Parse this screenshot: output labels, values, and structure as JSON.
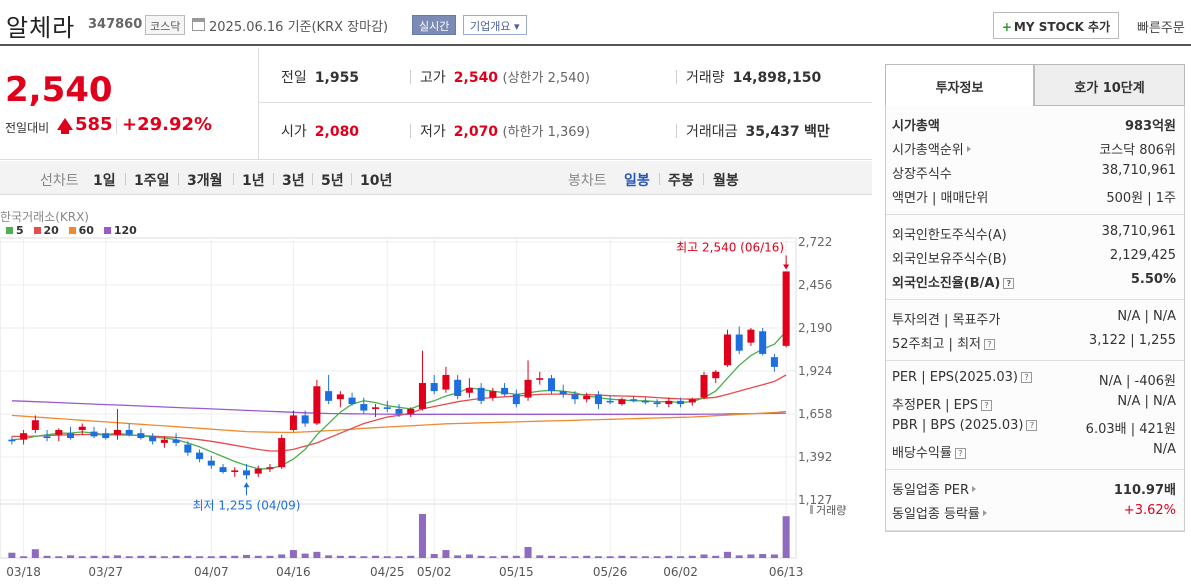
{
  "header": {
    "stock_name": "알체라",
    "stock_code": "347860",
    "market": "코스닥",
    "base_date": "2025.06.16  기준(KRX 장마감)",
    "realtime_label": "실시간",
    "overview_label": "기업개요 ▾",
    "mystock_label": "MY STOCK 추가",
    "mystock_plus": "+",
    "quick_order_label": "빠른주문"
  },
  "summary": {
    "current_price": "2,540",
    "change_label": "전일대비",
    "change_value": "585",
    "change_rate": "+29.92%",
    "prev_close_label": "전일",
    "prev_close": "1,955",
    "high_label": "고가",
    "high": "2,540",
    "upper_limit": "(상한가 2,540)",
    "volume_label": "거래량",
    "volume": "14,898,150",
    "open_label": "시가",
    "open": "2,080",
    "low_label": "저가",
    "low": "2,070",
    "lower_limit": "(하한가 1,369)",
    "turnover_label": "거래대금",
    "turnover": "35,437",
    "turnover_unit": "백만"
  },
  "chart_tabs": {
    "futures_label": "선차트",
    "periods": [
      "1일",
      "1주일",
      "3개월",
      "1년",
      "3년",
      "5년",
      "10년"
    ],
    "candle_label": "봉차트",
    "candle_periods": [
      "일봉",
      "주봉",
      "월봉"
    ],
    "active_candle": "일봉"
  },
  "chart_data": {
    "type": "candlestick",
    "source": "한국거래소(KRX)",
    "legend": [
      {
        "name": "5",
        "color": "#4caf50"
      },
      {
        "name": "20",
        "color": "#e84b4b"
      },
      {
        "name": "60",
        "color": "#f08a30"
      },
      {
        "name": "120",
        "color": "#9b59d0"
      }
    ],
    "y_ticks": [
      "2,722",
      "2,456",
      "2,190",
      "1,924",
      "1,658",
      "1,392",
      "1,127"
    ],
    "ylim": [
      1127,
      2722
    ],
    "x_ticks": [
      "03/18",
      "03/27",
      "04/07",
      "04/16",
      "04/25",
      "05/02",
      "05/15",
      "05/26",
      "06/02",
      "06/13"
    ],
    "annotation_high": "최고 2,540 (06/16)",
    "annotation_low": "최저 1,255 (04/09)",
    "volume_label": "거래량",
    "candles": [
      {
        "o": 1500,
        "h": 1520,
        "l": 1470,
        "c": 1490
      },
      {
        "o": 1500,
        "h": 1560,
        "l": 1470,
        "c": 1540
      },
      {
        "o": 1560,
        "h": 1650,
        "l": 1540,
        "c": 1620
      },
      {
        "o": 1520,
        "h": 1560,
        "l": 1490,
        "c": 1510
      },
      {
        "o": 1530,
        "h": 1570,
        "l": 1490,
        "c": 1560
      },
      {
        "o": 1540,
        "h": 1580,
        "l": 1500,
        "c": 1510
      },
      {
        "o": 1560,
        "h": 1600,
        "l": 1530,
        "c": 1580
      },
      {
        "o": 1550,
        "h": 1580,
        "l": 1510,
        "c": 1520
      },
      {
        "o": 1540,
        "h": 1570,
        "l": 1500,
        "c": 1510
      },
      {
        "o": 1530,
        "h": 1690,
        "l": 1500,
        "c": 1560
      },
      {
        "o": 1560,
        "h": 1600,
        "l": 1520,
        "c": 1530
      },
      {
        "o": 1540,
        "h": 1570,
        "l": 1500,
        "c": 1510
      },
      {
        "o": 1520,
        "h": 1540,
        "l": 1470,
        "c": 1490
      },
      {
        "o": 1480,
        "h": 1520,
        "l": 1450,
        "c": 1500
      },
      {
        "o": 1500,
        "h": 1540,
        "l": 1460,
        "c": 1480
      },
      {
        "o": 1470,
        "h": 1490,
        "l": 1400,
        "c": 1420
      },
      {
        "o": 1420,
        "h": 1440,
        "l": 1360,
        "c": 1380
      },
      {
        "o": 1370,
        "h": 1400,
        "l": 1320,
        "c": 1340
      },
      {
        "o": 1330,
        "h": 1350,
        "l": 1290,
        "c": 1300
      },
      {
        "o": 1300,
        "h": 1330,
        "l": 1270,
        "c": 1310
      },
      {
        "o": 1310,
        "h": 1350,
        "l": 1255,
        "c": 1280
      },
      {
        "o": 1290,
        "h": 1340,
        "l": 1270,
        "c": 1320
      },
      {
        "o": 1320,
        "h": 1350,
        "l": 1300,
        "c": 1330
      },
      {
        "o": 1330,
        "h": 1530,
        "l": 1320,
        "c": 1510
      },
      {
        "o": 1560,
        "h": 1680,
        "l": 1550,
        "c": 1650
      },
      {
        "o": 1650,
        "h": 1680,
        "l": 1580,
        "c": 1600
      },
      {
        "o": 1600,
        "h": 1870,
        "l": 1590,
        "c": 1830
      },
      {
        "o": 1800,
        "h": 1900,
        "l": 1720,
        "c": 1740
      },
      {
        "o": 1750,
        "h": 1800,
        "l": 1700,
        "c": 1780
      },
      {
        "o": 1760,
        "h": 1790,
        "l": 1710,
        "c": 1720
      },
      {
        "o": 1720,
        "h": 1760,
        "l": 1660,
        "c": 1680
      },
      {
        "o": 1690,
        "h": 1720,
        "l": 1640,
        "c": 1700
      },
      {
        "o": 1700,
        "h": 1740,
        "l": 1670,
        "c": 1690
      },
      {
        "o": 1690,
        "h": 1720,
        "l": 1640,
        "c": 1660
      },
      {
        "o": 1660,
        "h": 1700,
        "l": 1640,
        "c": 1690
      },
      {
        "o": 1690,
        "h": 2050,
        "l": 1680,
        "c": 1850
      },
      {
        "o": 1850,
        "h": 1900,
        "l": 1780,
        "c": 1800
      },
      {
        "o": 1810,
        "h": 1950,
        "l": 1790,
        "c": 1900
      },
      {
        "o": 1870,
        "h": 1900,
        "l": 1750,
        "c": 1770
      },
      {
        "o": 1790,
        "h": 1880,
        "l": 1760,
        "c": 1820
      },
      {
        "o": 1820,
        "h": 1850,
        "l": 1720,
        "c": 1740
      },
      {
        "o": 1760,
        "h": 1820,
        "l": 1740,
        "c": 1800
      },
      {
        "o": 1820,
        "h": 1850,
        "l": 1770,
        "c": 1780
      },
      {
        "o": 1780,
        "h": 1810,
        "l": 1700,
        "c": 1720
      },
      {
        "o": 1760,
        "h": 1990,
        "l": 1740,
        "c": 1870
      },
      {
        "o": 1870,
        "h": 1920,
        "l": 1840,
        "c": 1880
      },
      {
        "o": 1880,
        "h": 1900,
        "l": 1780,
        "c": 1800
      },
      {
        "o": 1800,
        "h": 1840,
        "l": 1760,
        "c": 1780
      },
      {
        "o": 1780,
        "h": 1800,
        "l": 1720,
        "c": 1750
      },
      {
        "o": 1750,
        "h": 1790,
        "l": 1730,
        "c": 1770
      },
      {
        "o": 1780,
        "h": 1800,
        "l": 1690,
        "c": 1720
      },
      {
        "o": 1740,
        "h": 1770,
        "l": 1720,
        "c": 1730
      },
      {
        "o": 1720,
        "h": 1760,
        "l": 1710,
        "c": 1750
      },
      {
        "o": 1750,
        "h": 1770,
        "l": 1730,
        "c": 1740
      },
      {
        "o": 1740,
        "h": 1760,
        "l": 1720,
        "c": 1730
      },
      {
        "o": 1730,
        "h": 1750,
        "l": 1700,
        "c": 1720
      },
      {
        "o": 1720,
        "h": 1760,
        "l": 1700,
        "c": 1740
      },
      {
        "o": 1740,
        "h": 1760,
        "l": 1700,
        "c": 1720
      },
      {
        "o": 1730,
        "h": 1760,
        "l": 1710,
        "c": 1750
      },
      {
        "o": 1760,
        "h": 1920,
        "l": 1750,
        "c": 1900
      },
      {
        "o": 1880,
        "h": 1930,
        "l": 1850,
        "c": 1920
      },
      {
        "o": 1960,
        "h": 2180,
        "l": 1950,
        "c": 2150
      },
      {
        "o": 2150,
        "h": 2200,
        "l": 2030,
        "c": 2050
      },
      {
        "o": 2100,
        "h": 2190,
        "l": 2080,
        "c": 2180
      },
      {
        "o": 2170,
        "h": 2190,
        "l": 2020,
        "c": 2030
      },
      {
        "o": 2010,
        "h": 2030,
        "l": 1920,
        "c": 1950
      },
      {
        "o": 2080,
        "h": 2540,
        "l": 2070,
        "c": 2540
      }
    ],
    "volumes": [
      12,
      4,
      20,
      5,
      4,
      6,
      4,
      5,
      5,
      6,
      4,
      5,
      5,
      4,
      5,
      5,
      4,
      4,
      5,
      5,
      7,
      5,
      5,
      8,
      18,
      10,
      14,
      6,
      5,
      5,
      4,
      5,
      4,
      4,
      5,
      100,
      9,
      18,
      6,
      8,
      5,
      4,
      5,
      5,
      25,
      6,
      5,
      4,
      4,
      5,
      4,
      4,
      5,
      4,
      4,
      4,
      5,
      4,
      5,
      8,
      5,
      14,
      6,
      8,
      9,
      8,
      95
    ],
    "ma5": [
      1500,
      1505,
      1520,
      1530,
      1540,
      1540,
      1548,
      1540,
      1530,
      1540,
      1530,
      1525,
      1515,
      1510,
      1500,
      1480,
      1455,
      1425,
      1395,
      1365,
      1340,
      1320,
      1320,
      1340,
      1380,
      1440,
      1530,
      1600,
      1670,
      1720,
      1740,
      1730,
      1710,
      1700,
      1690,
      1720,
      1740,
      1770,
      1790,
      1820,
      1810,
      1800,
      1790,
      1780,
      1790,
      1800,
      1805,
      1800,
      1790,
      1770,
      1760,
      1750,
      1745,
      1740,
      1740,
      1735,
      1735,
      1730,
      1735,
      1760,
      1800,
      1880,
      1960,
      2020,
      2060,
      2090,
      2170
    ],
    "ma20": [
      1520,
      1520,
      1522,
      1525,
      1528,
      1530,
      1532,
      1532,
      1530,
      1530,
      1528,
      1525,
      1522,
      1518,
      1514,
      1508,
      1500,
      1490,
      1478,
      1465,
      1452,
      1440,
      1430,
      1430,
      1440,
      1460,
      1480,
      1510,
      1540,
      1570,
      1600,
      1620,
      1640,
      1650,
      1665,
      1690,
      1705,
      1720,
      1735,
      1745,
      1755,
      1760,
      1765,
      1770,
      1775,
      1780,
      1782,
      1782,
      1780,
      1778,
      1776,
      1772,
      1770,
      1768,
      1765,
      1760,
      1756,
      1752,
      1750,
      1755,
      1762,
      1780,
      1800,
      1820,
      1840,
      1860,
      1900
    ],
    "ma60": [
      1650,
      1645,
      1640,
      1635,
      1630,
      1625,
      1620,
      1615,
      1610,
      1605,
      1600,
      1595,
      1590,
      1585,
      1580,
      1575,
      1570,
      1565,
      1560,
      1555,
      1550,
      1548,
      1546,
      1545,
      1545,
      1548,
      1552,
      1556,
      1560,
      1565,
      1570,
      1574,
      1578,
      1582,
      1586,
      1590,
      1594,
      1598,
      1600,
      1602,
      1604,
      1606,
      1608,
      1610,
      1612,
      1614,
      1616,
      1618,
      1620,
      1622,
      1624,
      1626,
      1628,
      1630,
      1632,
      1634,
      1636,
      1638,
      1640,
      1644,
      1648,
      1652,
      1656,
      1660,
      1664,
      1668,
      1675
    ],
    "ma120": [
      1740,
      1738,
      1735,
      1732,
      1729,
      1726,
      1723,
      1720,
      1717,
      1714,
      1711,
      1708,
      1705,
      1702,
      1699,
      1696,
      1693,
      1690,
      1687,
      1684,
      1681,
      1678,
      1675,
      1672,
      1669,
      1666,
      1664,
      1662,
      1661,
      1660,
      1659,
      1658,
      1658,
      1657,
      1657,
      1657,
      1657,
      1657,
      1657,
      1657,
      1657,
      1657,
      1657,
      1657,
      1657,
      1657,
      1657,
      1657,
      1657,
      1657,
      1657,
      1657,
      1657,
      1657,
      1657,
      1657,
      1657,
      1657,
      1657,
      1658,
      1658,
      1659,
      1660,
      1661,
      1662,
      1663,
      1664
    ]
  },
  "side": {
    "tab_active": "투자정보",
    "tab_inactive": "호가 10단계",
    "sections": [
      [
        {
          "k": "시가총액",
          "v": "983억원",
          "bold": true
        },
        {
          "k": "시가총액순위",
          "v": "코스닥 806위",
          "arrow": true
        },
        {
          "k": "상장주식수",
          "v": "38,710,961"
        },
        {
          "k": "액면가 | 매매단위",
          "v": "500원 | 1주"
        }
      ],
      [
        {
          "k": "외국인한도주식수(A)",
          "v": "38,710,961"
        },
        {
          "k": "외국인보유주식수(B)",
          "v": "2,129,425"
        },
        {
          "k": "외국인소진율(B/A)",
          "v": "5.50%",
          "bold": true,
          "q": true
        }
      ],
      [
        {
          "k": "투자의견 | 목표주가",
          "v": "N/A | N/A"
        },
        {
          "k": "52주최고 | 최저",
          "v": "3,122 | 1,255",
          "q": true
        }
      ],
      [
        {
          "k": "PER | EPS(2025.03)",
          "v": "N/A | -406원",
          "q": true
        },
        {
          "k": "추정PER | EPS",
          "v": "N/A | N/A",
          "q": true
        },
        {
          "k": "PBR | BPS (2025.03)",
          "v": "6.03배 | 421원",
          "q": true
        },
        {
          "k": "배당수익률",
          "v": "N/A",
          "q": true
        }
      ],
      [
        {
          "k": "동일업종 PER",
          "v": "110.97배",
          "bold_v": true,
          "arrow": true
        },
        {
          "k": "동일업종 등락률",
          "v": "+3.62%",
          "red": true,
          "arrow": true
        }
      ]
    ]
  }
}
